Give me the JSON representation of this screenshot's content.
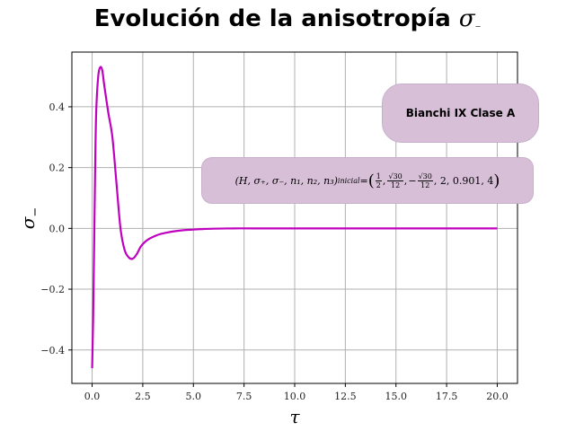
{
  "chart_data": {
    "type": "line",
    "title_text": "Evolución de la anisotropía",
    "title_symbol": "σ",
    "title_symbol_sub": "−",
    "xlabel": "τ",
    "ylabel_symbol": "σ",
    "ylabel_sub": "−",
    "xlim": [
      -1.0,
      21.0
    ],
    "ylim": [
      -0.51,
      0.58
    ],
    "grid": true,
    "x_ticks": [
      0.0,
      2.5,
      5.0,
      7.5,
      10.0,
      12.5,
      15.0,
      17.5,
      20.0
    ],
    "x_tick_labels": [
      "0.0",
      "2.5",
      "5.0",
      "7.5",
      "10.0",
      "12.5",
      "15.0",
      "17.5",
      "20.0"
    ],
    "y_ticks": [
      -0.4,
      -0.2,
      0.0,
      0.2,
      0.4
    ],
    "y_tick_labels": [
      "−0.4",
      "−0.2",
      "0.0",
      "0.2",
      "0.4"
    ],
    "series": [
      {
        "color": "#bf00bf",
        "x": [
          0.0,
          0.05,
          0.1,
          0.15,
          0.2,
          0.3,
          0.4,
          0.5,
          0.6,
          0.8,
          1.0,
          1.2,
          1.4,
          1.6,
          1.8,
          2.0,
          2.2,
          2.4,
          2.6,
          2.8,
          3.0,
          3.3,
          3.6,
          4.0,
          4.5,
          5.0,
          5.5,
          6.0,
          7.0,
          8.0,
          10.0,
          12.0,
          15.0,
          20.0
        ],
        "y": [
          -0.46,
          -0.3,
          -0.05,
          0.2,
          0.38,
          0.5,
          0.53,
          0.52,
          0.47,
          0.38,
          0.3,
          0.15,
          0.0,
          -0.07,
          -0.095,
          -0.1,
          -0.085,
          -0.06,
          -0.045,
          -0.035,
          -0.028,
          -0.02,
          -0.015,
          -0.01,
          -0.006,
          -0.004,
          -0.002,
          -0.001,
          0.0,
          0.0,
          0.0,
          0.0,
          0.0,
          0.0
        ]
      }
    ]
  },
  "annotations": {
    "box1": "Bianchi IX Clase A",
    "box2_lhs": "(H, σ₊, σ₋, n₁, n₂, n₃)",
    "box2_sub": "inicial",
    "box2_equals": " = ",
    "box2_half_num": "1",
    "box2_half_den": "2",
    "box2_sq_num": "√30",
    "box2_sq_den": "12",
    "box2_minus": "−",
    "box2_tail": ", 2, 0.901, 4"
  }
}
